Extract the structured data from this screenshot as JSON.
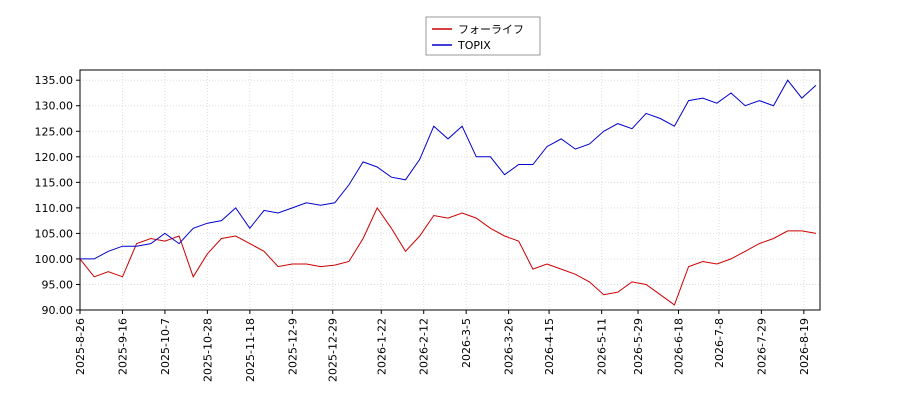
{
  "chart_data": {
    "type": "line",
    "x": [
      "2025-8-26",
      "2025-9-2",
      "2025-9-9",
      "2025-9-16",
      "2025-9-23",
      "2025-9-30",
      "2025-10-7",
      "2025-10-14",
      "2025-10-21",
      "2025-10-28",
      "2025-11-4",
      "2025-11-11",
      "2025-11-18",
      "2025-11-25",
      "2025-12-2",
      "2025-12-9",
      "2025-12-16",
      "2025-12-23",
      "2025-12-30",
      "2026-1-6",
      "2026-1-13",
      "2026-1-20",
      "2026-1-27",
      "2026-2-3",
      "2026-2-10",
      "2026-2-17",
      "2026-2-24",
      "2026-3-3",
      "2026-3-10",
      "2026-3-17",
      "2026-3-24",
      "2026-3-31",
      "2026-4-7",
      "2026-4-14",
      "2026-4-21",
      "2026-4-28",
      "2026-5-5",
      "2026-5-12",
      "2026-5-19",
      "2026-5-26",
      "2026-6-2",
      "2026-6-9",
      "2026-6-16",
      "2026-6-23",
      "2026-6-30",
      "2026-7-7",
      "2026-7-14",
      "2026-7-21",
      "2026-7-28",
      "2026-8-4",
      "2026-8-11",
      "2026-8-18",
      "2026-8-25"
    ],
    "series": [
      {
        "name": "フォーライフ",
        "color": "#cc0000",
        "values": [
          100,
          96.5,
          97.5,
          96.5,
          103,
          104,
          103.5,
          104.5,
          96.5,
          101,
          104,
          104.5,
          103,
          101.5,
          98.5,
          99,
          99,
          98.5,
          98.8,
          99.5,
          104,
          110,
          106,
          101.5,
          104.5,
          108.5,
          108,
          109,
          108,
          106,
          104.5,
          103.5,
          98,
          99,
          98,
          97,
          95.5,
          93,
          93.5,
          95.5,
          95,
          93,
          91,
          98.5,
          99.5,
          99,
          100,
          101.5,
          103,
          104,
          105.5,
          105.5,
          105
        ]
      },
      {
        "name": "TOPIX",
        "color": "#0000cc",
        "values": [
          100,
          100,
          101.5,
          102.5,
          102.5,
          103,
          105,
          103,
          106,
          107,
          107.5,
          110,
          106,
          109.5,
          109,
          110,
          111,
          110.5,
          111,
          114.5,
          119,
          118,
          116,
          115.5,
          119.5,
          126,
          123.5,
          126,
          120,
          120,
          116.5,
          118.5,
          118.5,
          122,
          123.5,
          121.5,
          122.5,
          125,
          126.5,
          125.5,
          128.5,
          127.5,
          126,
          131,
          131.5,
          130.5,
          132.5,
          130,
          131,
          130,
          135,
          131.5,
          134
        ]
      }
    ],
    "xlim": [
      "2025-8-26",
      "2026-8-27"
    ],
    "xticks": [
      "2025-8-26",
      "2025-9-16",
      "2025-10-7",
      "2025-10-28",
      "2025-11-18",
      "2025-12-9",
      "2025-12-29",
      "2026-1-22",
      "2026-2-12",
      "2026-3-5",
      "2026-3-26",
      "2026-4-15",
      "2026-5-11",
      "2026-5-29",
      "2026-6-18",
      "2026-7-8",
      "2026-7-29",
      "2026-8-19"
    ],
    "ylim": [
      90,
      137
    ],
    "yticks": [
      {
        "value": 90,
        "label": "90.00"
      },
      {
        "value": 95,
        "label": "95.00"
      },
      {
        "value": 100,
        "label": "100.00"
      },
      {
        "value": 105,
        "label": "105.00"
      },
      {
        "value": 110,
        "label": "110.00"
      },
      {
        "value": 115,
        "label": "115.00"
      },
      {
        "value": 120,
        "label": "120.00"
      },
      {
        "value": 125,
        "label": "125.00"
      },
      {
        "value": 130,
        "label": "130.00"
      },
      {
        "value": 135,
        "label": "135.00"
      }
    ],
    "grid": true,
    "legend": "top"
  }
}
